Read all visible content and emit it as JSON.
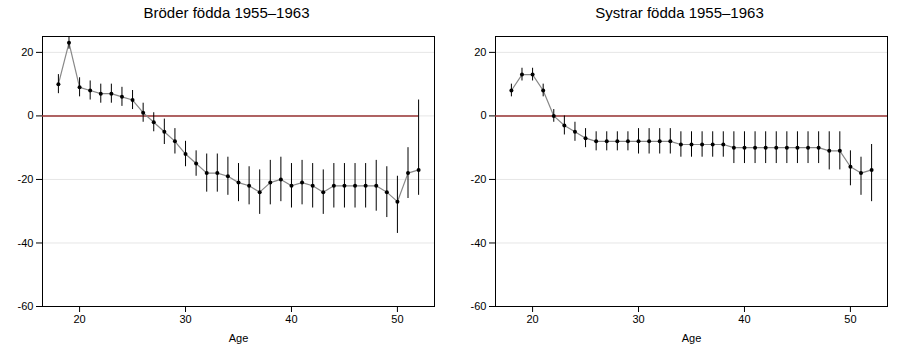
{
  "chart_data": [
    {
      "type": "line",
      "title": "Bröder födda 1955–1963",
      "xlabel": "Age",
      "xlim": [
        16.5,
        53.5
      ],
      "xticks": [
        20,
        30,
        40,
        50
      ],
      "ylim": [
        -60,
        25
      ],
      "yticks": [
        -60,
        -40,
        -20,
        0,
        20
      ],
      "grid": true,
      "color": "#888888",
      "marker": "o",
      "marker_color": "#000000",
      "x": [
        18,
        19,
        20,
        21,
        22,
        23,
        24,
        25,
        26,
        27,
        28,
        29,
        30,
        31,
        32,
        33,
        34,
        35,
        36,
        37,
        38,
        39,
        40,
        41,
        42,
        43,
        44,
        45,
        46,
        47,
        48,
        49,
        50,
        51,
        52
      ],
      "values": [
        10,
        23,
        9,
        8,
        7,
        7,
        6,
        5,
        1,
        -2,
        -5,
        -8,
        -12,
        -15,
        -18,
        -18,
        -19,
        -21,
        -22,
        -24,
        -21,
        -20,
        -22,
        -21,
        -22,
        -24,
        -22,
        -22,
        -22,
        -22,
        -22,
        -24,
        -27,
        -18,
        -17
      ],
      "error_bars": {
        "color": "#000000",
        "lower": [
          3,
          2,
          3,
          3,
          3,
          3,
          3,
          3,
          3,
          3,
          4,
          4,
          4,
          4,
          6,
          6,
          6,
          6,
          6,
          7,
          7,
          7,
          7,
          7,
          7,
          7,
          7,
          7,
          7,
          7,
          8,
          8,
          10,
          8,
          8
        ],
        "upper": [
          3,
          2,
          3,
          3,
          3,
          3,
          3,
          3,
          3,
          3,
          4,
          4,
          4,
          4,
          6,
          6,
          6,
          6,
          6,
          7,
          7,
          7,
          7,
          7,
          7,
          7,
          7,
          7,
          7,
          7,
          8,
          8,
          8,
          8,
          22
        ]
      },
      "reference_line": {
        "y": 0,
        "x_end": 52,
        "color": "#993333"
      }
    },
    {
      "type": "line",
      "title": "Systrar födda 1955–1963",
      "xlabel": "Age",
      "xlim": [
        16.5,
        53.5
      ],
      "xticks": [
        20,
        30,
        40,
        50
      ],
      "ylim": [
        -60,
        25
      ],
      "yticks": [
        -60,
        -40,
        -20,
        0,
        20
      ],
      "grid": true,
      "color": "#888888",
      "marker": "o",
      "marker_color": "#000000",
      "x": [
        18,
        19,
        20,
        21,
        22,
        23,
        24,
        25,
        26,
        27,
        28,
        29,
        30,
        31,
        32,
        33,
        34,
        35,
        36,
        37,
        38,
        39,
        40,
        41,
        42,
        43,
        44,
        45,
        46,
        47,
        48,
        49,
        50,
        51,
        52
      ],
      "values": [
        8,
        13,
        13,
        8,
        0,
        -3,
        -5,
        -7,
        -8,
        -8,
        -8,
        -8,
        -8,
        -8,
        -8,
        -8,
        -9,
        -9,
        -9,
        -9,
        -9,
        -10,
        -10,
        -10,
        -10,
        -10,
        -10,
        -10,
        -10,
        -10,
        -11,
        -11,
        -16,
        -18,
        -17
      ],
      "error_bars": {
        "color": "#000000",
        "lower": [
          2,
          2,
          2,
          2,
          2,
          3,
          3,
          3,
          3,
          3,
          3,
          3,
          4,
          4,
          4,
          4,
          4,
          4,
          4,
          4,
          4,
          5,
          5,
          5,
          5,
          5,
          5,
          5,
          5,
          5,
          6,
          6,
          6,
          7,
          10
        ],
        "upper": [
          2,
          2,
          2,
          2,
          2,
          3,
          3,
          3,
          3,
          3,
          3,
          3,
          4,
          4,
          4,
          4,
          4,
          4,
          4,
          4,
          4,
          5,
          5,
          5,
          5,
          5,
          5,
          5,
          5,
          5,
          6,
          6,
          5,
          5,
          8
        ]
      },
      "reference_line": {
        "y": 0,
        "x_end": 53.5,
        "color": "#993333"
      }
    }
  ]
}
